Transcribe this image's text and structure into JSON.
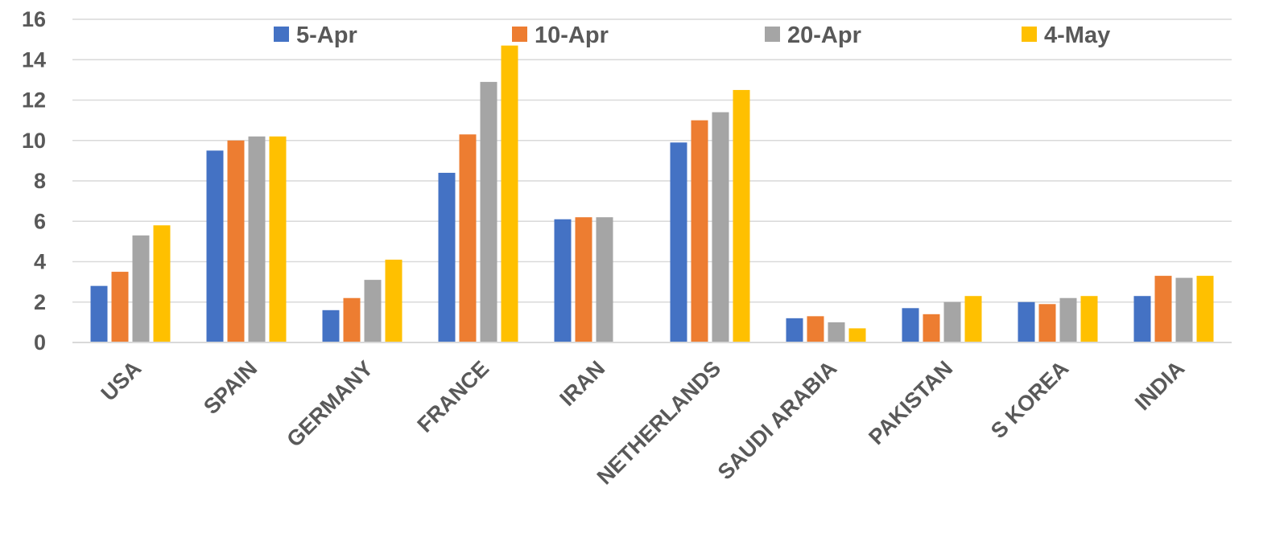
{
  "chart_data": {
    "type": "bar",
    "title": "",
    "xlabel": "",
    "ylabel": "",
    "ylim": [
      0,
      16
    ],
    "yticks": [
      0,
      2,
      4,
      6,
      8,
      10,
      12,
      14,
      16
    ],
    "grid": true,
    "legend_position": "top",
    "categories": [
      "USA",
      "SPAIN",
      "GERMANY",
      "FRANCE",
      "IRAN",
      "NETHERLANDS",
      "SAUDI ARABIA",
      "PAKISTAN",
      "S KOREA",
      "INDIA"
    ],
    "series": [
      {
        "name": "5-Apr",
        "color": "#4472C4",
        "values": [
          2.8,
          9.5,
          1.6,
          8.4,
          6.1,
          9.9,
          1.2,
          1.7,
          2.0,
          2.3
        ]
      },
      {
        "name": "10-Apr",
        "color": "#ED7D31",
        "values": [
          3.5,
          10.0,
          2.2,
          10.3,
          6.2,
          11.0,
          1.3,
          1.4,
          1.9,
          3.3
        ]
      },
      {
        "name": "20-Apr",
        "color": "#A5A5A5",
        "values": [
          5.3,
          10.2,
          3.1,
          12.9,
          6.2,
          11.4,
          1.0,
          2.0,
          2.2,
          3.2
        ]
      },
      {
        "name": "4-May",
        "color": "#FFC000",
        "values": [
          5.8,
          10.2,
          4.1,
          14.7,
          null,
          12.5,
          0.7,
          2.3,
          2.3,
          3.3
        ]
      }
    ]
  }
}
